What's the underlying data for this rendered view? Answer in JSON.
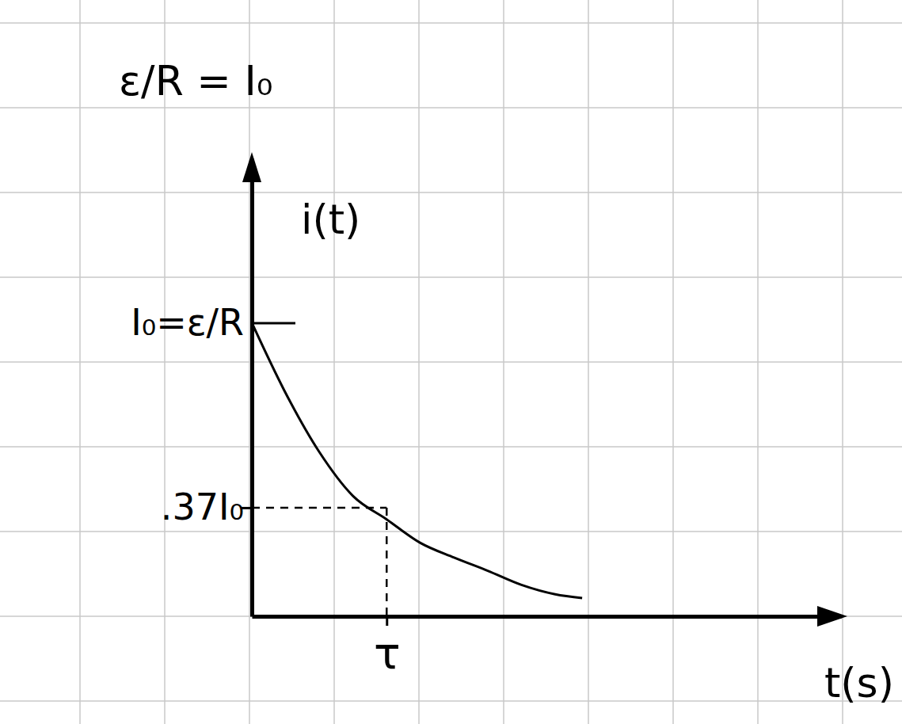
{
  "chart_data": {
    "type": "line",
    "annotation": "ε/R = I₀",
    "y_label": "i(t)",
    "x_label": "t(s)",
    "x": [
      0,
      0.24,
      0.5,
      0.75,
      1,
      1.25,
      1.5,
      1.75,
      2,
      2.25,
      2.45
    ],
    "values": [
      1,
      0.77,
      0.56,
      0.41,
      0.33,
      0.25,
      0.2,
      0.155,
      0.107,
      0.075,
      0.062
    ],
    "color": "#000000",
    "xlim": [
      0,
      4.37
    ],
    "ylim": [
      0,
      1.56
    ],
    "xticks": [
      {
        "value": 1,
        "label": "τ"
      }
    ],
    "yticks": [
      {
        "value": 0.37,
        "label": ".37I₀"
      },
      {
        "value": 1,
        "label": "I₀=ε/R"
      }
    ]
  }
}
